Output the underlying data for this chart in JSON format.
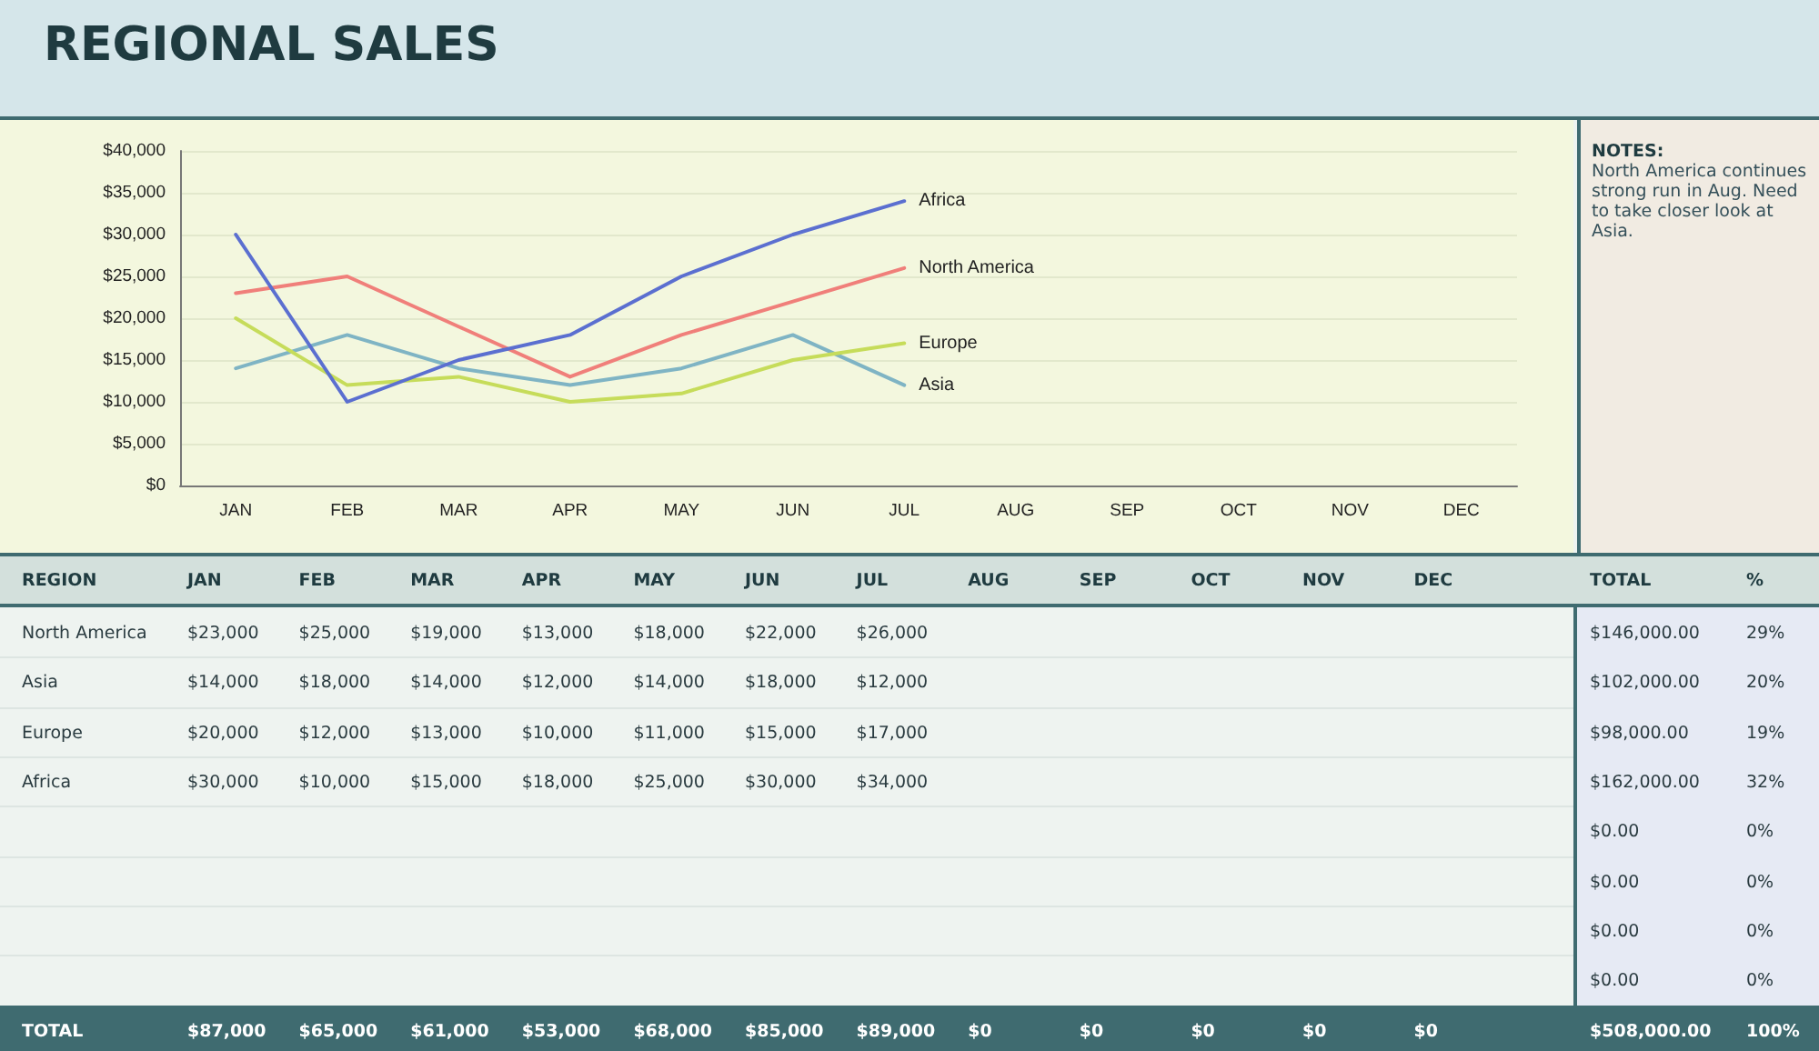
{
  "chart_data": {
    "type": "line",
    "title": "REGIONAL SALES",
    "categories": [
      "JAN",
      "FEB",
      "MAR",
      "APR",
      "MAY",
      "JUN",
      "JUL",
      "AUG",
      "SEP",
      "OCT",
      "NOV",
      "DEC"
    ],
    "series": [
      {
        "name": "North America",
        "color": "#f07f7a",
        "values": [
          23000,
          25000,
          19000,
          13000,
          18000,
          22000,
          26000,
          null,
          null,
          null,
          null,
          null
        ],
        "value_labels": [
          "$23,000",
          "$25,000",
          "$19,000",
          "$13,000",
          "$18,000",
          "$22,000",
          "$26,000",
          null,
          null,
          null,
          null,
          null
        ]
      },
      {
        "name": "Asia",
        "color": "#7fb4c4",
        "values": [
          14000,
          18000,
          14000,
          12000,
          14000,
          18000,
          12000,
          null,
          null,
          null,
          null,
          null
        ],
        "value_labels": [
          "$14,000",
          "$18,000",
          "$14,000",
          "$12,000",
          "$14,000",
          "$18,000",
          "$12,000",
          null,
          null,
          null,
          null,
          null
        ]
      },
      {
        "name": "Europe",
        "color": "#c6dc5a",
        "values": [
          20000,
          12000,
          13000,
          10000,
          11000,
          15000,
          17000,
          null,
          null,
          null,
          null,
          null
        ],
        "value_labels": [
          "$20,000",
          "$12,000",
          "$13,000",
          "$10,000",
          "$11,000",
          "$15,000",
          "$17,000",
          null,
          null,
          null,
          null,
          null
        ]
      },
      {
        "name": "Africa",
        "color": "#5b6fd0",
        "values": [
          30000,
          10000,
          15000,
          18000,
          25000,
          30000,
          34000,
          null,
          null,
          null,
          null,
          null
        ],
        "value_labels": [
          "$30,000",
          "$10,000",
          "$15,000",
          "$18,000",
          "$25,000",
          "$30,000",
          "$34,000",
          null,
          null,
          null,
          null,
          null
        ]
      }
    ],
    "ylim": [
      0,
      40000
    ],
    "yticks": [
      {
        "value": 0,
        "label": "$0"
      },
      {
        "value": 5000,
        "label": "$5,000"
      },
      {
        "value": 10000,
        "label": "$10,000"
      },
      {
        "value": 15000,
        "label": "$15,000"
      },
      {
        "value": 20000,
        "label": "$20,000"
      },
      {
        "value": 25000,
        "label": "$25,000"
      },
      {
        "value": 30000,
        "label": "$30,000"
      },
      {
        "value": 35000,
        "label": "$35,000"
      },
      {
        "value": 40000,
        "label": "$40,000"
      }
    ],
    "grid": "y",
    "marker": "none",
    "line_style": "solid",
    "totals": [
      "$87,000",
      "$65,000",
      "$61,000",
      "$53,000",
      "$68,000",
      "$85,000",
      "$89,000",
      "$0",
      "$0",
      "$0",
      "$0",
      "$0"
    ],
    "annotations": [
      "NOTES:",
      "North America continues strong run in Aug. Need to take closer look at Asia.",
      "REGION",
      "TOTAL",
      "%",
      "$146,000.00",
      "$102,000.00",
      "$98,000.00",
      "$162,000.00",
      "$0.00",
      "$0.00",
      "$0.00",
      "$0.00",
      "29%",
      "20%",
      "19%",
      "32%",
      "0%",
      "0%",
      "0%",
      "0%",
      "TOTAL",
      "$508,000.00",
      "100%"
    ]
  }
}
